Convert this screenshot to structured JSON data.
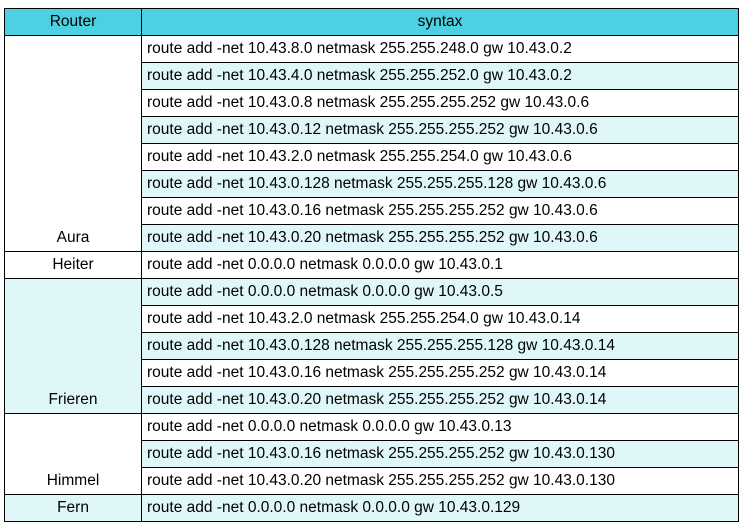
{
  "colors": {
    "header_bg": "#4dd0e1",
    "router_band_bg": "#e0f7fa",
    "syntax_even_bg": "#ffffff",
    "syntax_odd_bg": "#e0f7fa",
    "border": "#000000"
  },
  "table": {
    "headers": [
      "Router",
      "syntax"
    ],
    "groups": [
      {
        "router": "Aura",
        "shaded": false,
        "rows": [
          "route add -net 10.43.8.0 netmask 255.255.248.0 gw 10.43.0.2",
          "route add -net 10.43.4.0 netmask 255.255.252.0 gw 10.43.0.2",
          "route add -net 10.43.0.8 netmask 255.255.255.252 gw 10.43.0.6",
          "route add -net 10.43.0.12 netmask 255.255.255.252 gw 10.43.0.6",
          "route add -net 10.43.2.0 netmask 255.255.254.0 gw 10.43.0.6",
          "route add -net 10.43.0.128 netmask 255.255.255.128 gw 10.43.0.6",
          "route add -net 10.43.0.16 netmask 255.255.255.252 gw 10.43.0.6",
          "route add -net 10.43.0.20 netmask 255.255.255.252 gw 10.43.0.6"
        ]
      },
      {
        "router": "Heiter",
        "shaded": false,
        "rows": [
          "route add -net 0.0.0.0 netmask 0.0.0.0 gw 10.43.0.1"
        ]
      },
      {
        "router": "Frieren",
        "shaded": true,
        "rows": [
          "route add -net 0.0.0.0 netmask 0.0.0.0 gw 10.43.0.5",
          "route add -net 10.43.2.0 netmask 255.255.254.0 gw 10.43.0.14",
          "route add -net 10.43.0.128 netmask 255.255.255.128 gw 10.43.0.14",
          "route add -net 10.43.0.16 netmask 255.255.255.252 gw 10.43.0.14",
          "route add -net 10.43.0.20 netmask 255.255.255.252 gw 10.43.0.14"
        ]
      },
      {
        "router": "Himmel",
        "shaded": false,
        "rows": [
          "route add -net 0.0.0.0 netmask 0.0.0.0 gw 10.43.0.13",
          "route add -net 10.43.0.16 netmask 255.255.255.252 gw 10.43.0.130",
          "route add -net 10.43.0.20 netmask 255.255.255.252 gw 10.43.0.130"
        ]
      },
      {
        "router": "Fern",
        "shaded": true,
        "rows": [
          "route add -net 0.0.0.0 netmask 0.0.0.0 gw 10.43.0.129"
        ]
      }
    ]
  }
}
